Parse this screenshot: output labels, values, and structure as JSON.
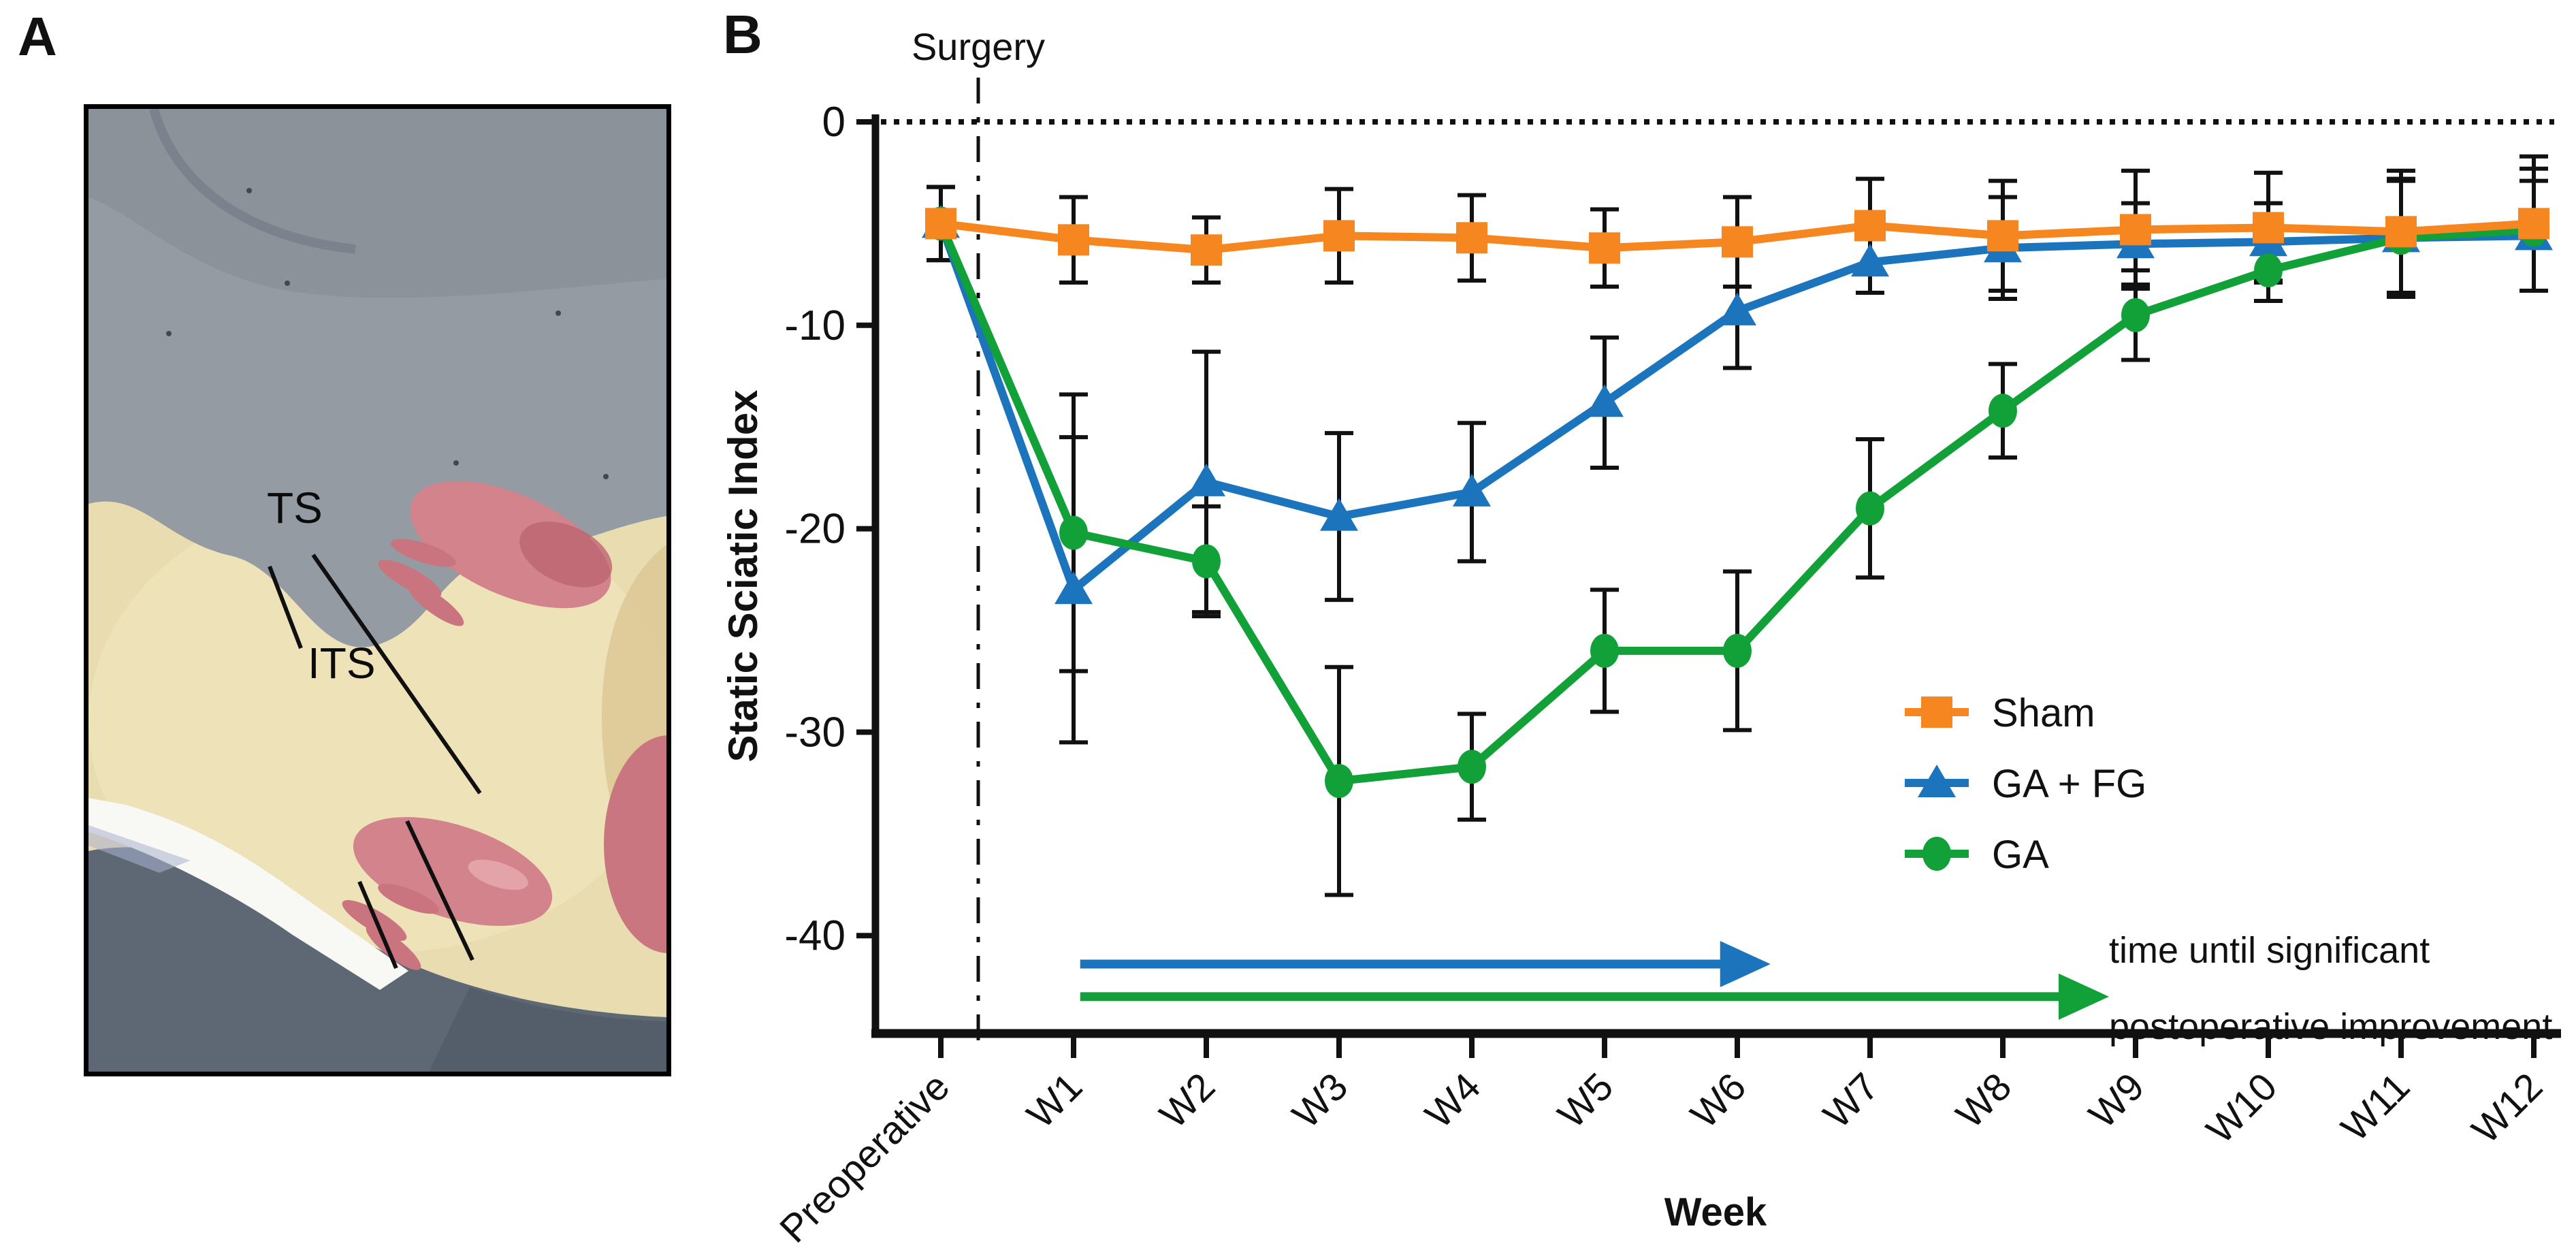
{
  "panel_a": {
    "label": "A",
    "photo": {
      "annotation_ts": "TS",
      "annotation_its": "ITS"
    }
  },
  "panel_b": {
    "label": "B"
  },
  "chart_data": {
    "type": "line",
    "title": "",
    "xlabel": "Week",
    "ylabel": "Static Sciatic Index",
    "categories": [
      "Preoperative",
      "W1",
      "W2",
      "W3",
      "W4",
      "W5",
      "W6",
      "W7",
      "W8",
      "W9",
      "W10",
      "W11",
      "W12"
    ],
    "yticks": [
      0,
      -10,
      -20,
      -30,
      -40
    ],
    "ylim": [
      -45,
      0
    ],
    "grid": "off",
    "zero_reference_line": "dotted horizontal line at 0",
    "surgery_line": {
      "label": "Surgery",
      "style": "dash-dot vertical line",
      "position_between": [
        "Preoperative",
        "W1"
      ]
    },
    "legend_position": "right-middle",
    "series": [
      {
        "name": "Sham",
        "color": "#F6861F",
        "marker": "square",
        "values": [
          -5.0,
          -5.8,
          -6.3,
          -5.6,
          -5.7,
          -6.2,
          -5.9,
          -5.1,
          -5.6,
          -5.3,
          -5.2,
          -5.4,
          -5.0
        ],
        "errors": [
          1.8,
          2.1,
          1.6,
          2.3,
          2.1,
          1.9,
          2.2,
          2.3,
          2.7,
          2.9,
          2.7,
          3.0,
          3.3
        ]
      },
      {
        "name": "GA + FG",
        "color": "#1B74BC",
        "marker": "triangle",
        "values": [
          -5.0,
          -23.0,
          -17.7,
          -19.4,
          -18.2,
          -13.8,
          -9.3,
          -6.9,
          -6.2,
          -6.0,
          -5.9,
          -5.7,
          -5.6
        ],
        "errors": [
          1.8,
          7.5,
          6.4,
          4.1,
          3.4,
          3.2,
          2.8,
          1.5,
          2.5,
          2.0,
          1.9,
          2.8,
          2.7
        ]
      },
      {
        "name": "GA",
        "color": "#12A038",
        "marker": "circle",
        "values": [
          -5.0,
          -20.2,
          -21.6,
          -32.4,
          -31.7,
          -26.0,
          -26.0,
          -19.0,
          -14.2,
          -9.5,
          -7.3,
          -5.7,
          -5.3
        ],
        "errors": [
          1.8,
          6.8,
          2.7,
          5.6,
          2.6,
          3.0,
          3.9,
          3.4,
          2.3,
          2.2,
          1.5,
          2.9,
          3.0
        ]
      }
    ],
    "arrows": [
      {
        "series": "GA + FG",
        "color": "#1B74BC",
        "from_index": 1.05,
        "to_index": 6.25,
        "y_value": -41.4
      },
      {
        "series": "GA",
        "color": "#12A038",
        "from_index": 1.05,
        "to_index": 8.8,
        "y_value": -43.0
      }
    ],
    "arrow_caption": [
      "time until significant",
      "postoperative improvement"
    ]
  }
}
